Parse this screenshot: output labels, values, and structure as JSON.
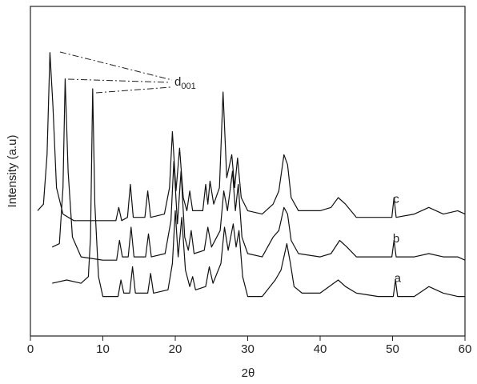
{
  "chart_data": {
    "type": "line",
    "x_label": "2θ",
    "y_label": "Intensity (a.u)",
    "annotation": {
      "text": "d",
      "subscript": "001"
    },
    "xlim": [
      0,
      60
    ],
    "xticks": [
      0,
      10,
      20,
      30,
      40,
      50,
      60
    ],
    "ylim": [
      0,
      100
    ],
    "series": [
      {
        "name": "c",
        "color": "#111111",
        "x": [
          1,
          1.8,
          2.3,
          2.7,
          3.1,
          3.6,
          4.5,
          6,
          8,
          10,
          11.8,
          12.2,
          12.6,
          13.4,
          13.8,
          14.2,
          15.8,
          16.2,
          16.6,
          18.5,
          19.2,
          19.6,
          20.1,
          20.6,
          21.1,
          21.6,
          22,
          22.4,
          23.8,
          24.2,
          24.5,
          24.8,
          25.3,
          26.1,
          26.6,
          27.1,
          27.8,
          28.2,
          28.6,
          29.1,
          30,
          32,
          33.5,
          34.3,
          35,
          35.5,
          36,
          37,
          40,
          41.5,
          42.5,
          43.5,
          45,
          48,
          49.9,
          50.2,
          50.5,
          53,
          55,
          57,
          59,
          60
        ],
        "values": [
          38,
          40,
          55,
          86,
          70,
          45,
          37,
          35,
          35,
          35,
          35,
          39,
          35,
          36,
          46,
          36,
          36,
          44,
          36,
          37,
          45,
          62,
          44,
          57,
          42,
          38,
          44,
          38,
          38,
          46,
          40,
          47,
          40,
          45,
          74,
          48,
          55,
          45,
          54,
          42,
          38,
          37,
          40,
          44,
          55,
          52,
          42,
          38,
          38,
          39,
          42,
          40,
          36,
          36,
          36,
          42,
          36,
          37,
          39,
          37,
          38,
          37
        ]
      },
      {
        "name": "b",
        "color": "#111111",
        "x": [
          3,
          4,
          4.5,
          4.8,
          5.2,
          5.8,
          7,
          10,
          11.9,
          12.3,
          12.7,
          13.5,
          13.9,
          14.3,
          15.9,
          16.3,
          16.7,
          18.6,
          19.4,
          19.8,
          20.3,
          20.8,
          21.3,
          21.8,
          22.2,
          22.6,
          24,
          24.5,
          25,
          26.2,
          26.7,
          27.2,
          27.9,
          28.3,
          28.7,
          29.2,
          30,
          32,
          33.5,
          34.3,
          35,
          35.5,
          36,
          37,
          40,
          41.5,
          42.7,
          43.7,
          45,
          48,
          49.9,
          50.2,
          50.5,
          53,
          55,
          57,
          59,
          60
        ],
        "values": [
          27,
          28,
          45,
          78,
          50,
          30,
          24,
          23,
          23,
          29,
          24,
          24,
          33,
          24,
          24,
          31,
          24,
          25,
          35,
          53,
          34,
          50,
          30,
          26,
          32,
          25,
          26,
          33,
          27,
          32,
          44,
          38,
          50,
          38,
          46,
          30,
          25,
          24,
          30,
          32,
          39,
          37,
          29,
          25,
          24,
          25,
          29,
          27,
          24,
          24,
          24,
          29,
          24,
          24,
          25,
          24,
          24,
          23
        ]
      },
      {
        "name": "a",
        "color": "#111111",
        "x": [
          3,
          5,
          7,
          8,
          8.3,
          8.6,
          8.9,
          9.4,
          10,
          12.1,
          12.5,
          12.9,
          13.7,
          14.1,
          14.5,
          16.2,
          16.6,
          17,
          19,
          19.6,
          20,
          20.4,
          20.9,
          21.4,
          22,
          22.4,
          22.8,
          24.2,
          24.7,
          25.2,
          26.3,
          26.8,
          27.3,
          28,
          28.4,
          28.8,
          29.3,
          30,
          32,
          33.8,
          34.6,
          35.4,
          35.9,
          36.4,
          37.5,
          40,
          42.5,
          43.5,
          45,
          48,
          50.1,
          50.4,
          50.7,
          53,
          55,
          57,
          59,
          60
        ],
        "values": [
          16,
          17,
          16,
          18,
          30,
          75,
          40,
          18,
          12,
          12,
          17,
          13,
          13,
          21,
          13,
          13,
          19,
          13,
          14,
          22,
          38,
          24,
          36,
          20,
          15,
          18,
          14,
          15,
          21,
          16,
          22,
          33,
          26,
          34,
          27,
          32,
          18,
          12,
          12,
          17,
          20,
          28,
          22,
          15,
          13,
          13,
          17,
          15,
          13,
          12,
          12,
          17,
          12,
          12,
          15,
          13,
          12,
          12
        ]
      }
    ]
  }
}
